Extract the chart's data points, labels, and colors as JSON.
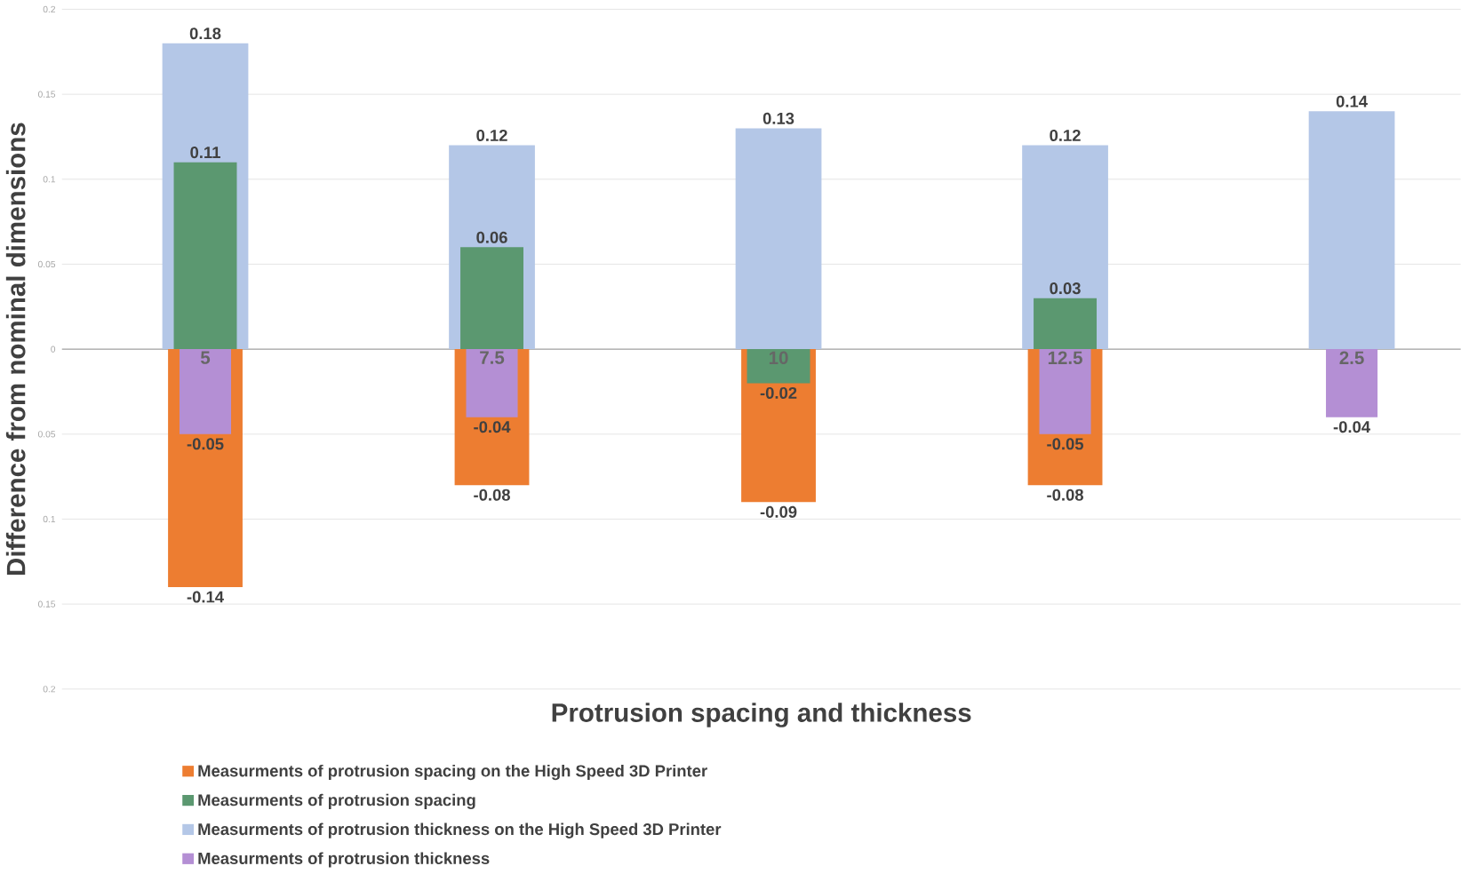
{
  "chart_data": {
    "type": "bar",
    "xlabel": "Protrusion spacing and thickness",
    "ylabel": "Difference from nominal dimensions",
    "categories": [
      "5",
      "7.5",
      "10",
      "12.5",
      "2.5"
    ],
    "series": [
      {
        "name": "Measurments of protrusion spacing on the High Speed 3D Printer",
        "color": "#ed7d31",
        "values": [
          -0.14,
          -0.08,
          -0.09,
          -0.08,
          null
        ],
        "value_labels": [
          "-0.14",
          "-0.08",
          "-0.09",
          "-0.08",
          null
        ]
      },
      {
        "name": "Measurments of protrusion spacing",
        "color": "#5b9870",
        "values": [
          0.11,
          0.06,
          -0.02,
          0.03,
          null
        ],
        "value_labels": [
          "0.11",
          "0.06",
          "-0.02",
          "0.03",
          null
        ]
      },
      {
        "name": "Measurments of protrusion thickness on the High Speed 3D Printer",
        "color": "#b4c7e7",
        "values": [
          0.18,
          0.12,
          0.13,
          0.12,
          0.14
        ],
        "value_labels": [
          "0.18",
          "0.12",
          "0.13",
          "0.12",
          "0.14"
        ]
      },
      {
        "name": "Measurments of protrusion thickness",
        "color": "#b48fd4",
        "values": [
          -0.05,
          -0.04,
          null,
          -0.05,
          -0.04
        ],
        "value_labels": [
          "-0.05",
          "-0.04",
          null,
          "-0.05",
          "-0.04"
        ]
      }
    ],
    "ylim": [
      -0.2,
      0.2
    ],
    "yticks": [
      {
        "value": -0.2,
        "label": "0.2"
      },
      {
        "value": -0.15,
        "label": "0.15"
      },
      {
        "value": -0.1,
        "label": "0.1"
      },
      {
        "value": -0.05,
        "label": "0.05"
      },
      0,
      0.05,
      0.1,
      0.15,
      0.2
    ],
    "grid": "y",
    "legend": "bottom"
  }
}
